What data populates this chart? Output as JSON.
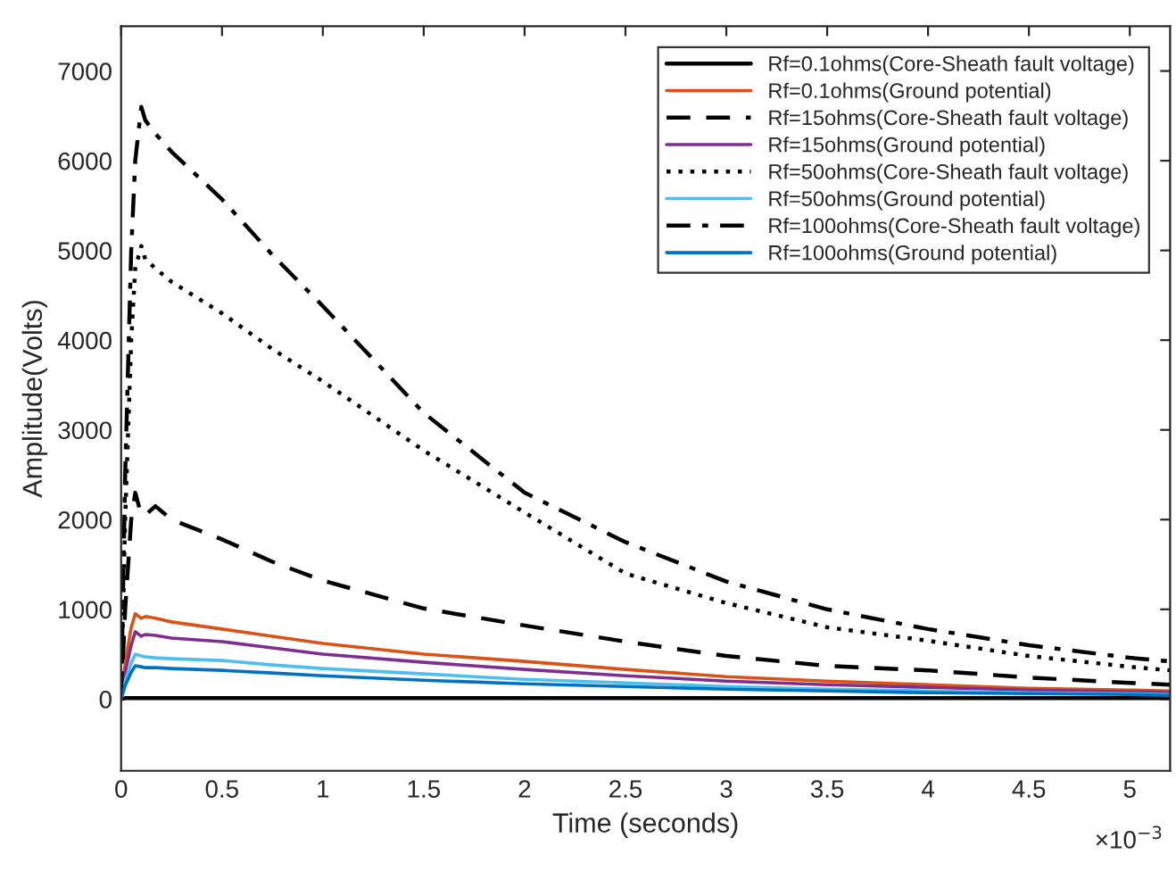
{
  "chart_data": {
    "type": "line",
    "xlabel": "Time (seconds)",
    "ylabel": "Amplitude(Volts)",
    "annotations": [
      "×10$^{−3}$"
    ],
    "x": [
      0,
      0.02,
      0.05,
      0.07,
      0.1,
      0.12,
      0.17,
      0.25,
      0.5,
      0.75,
      1,
      1.5,
      2,
      2.5,
      3,
      3.5,
      4,
      4.5,
      5,
      5.2
    ],
    "series": [
      {
        "name": "Rf=0.1ohms(Core-Sheath fault voltage)",
        "color": "#000000",
        "line_style": "solid",
        "values": [
          0,
          10,
          10,
          10,
          10,
          10,
          10,
          10,
          10,
          10,
          10,
          10,
          10,
          10,
          10,
          10,
          10,
          10,
          10,
          10
        ]
      },
      {
        "name": "Rf=0.1ohms(Ground potential)",
        "color": "#d95319",
        "line_style": "solid",
        "values": [
          0,
          400,
          800,
          950,
          900,
          920,
          900,
          860,
          780,
          700,
          620,
          500,
          420,
          330,
          250,
          200,
          160,
          120,
          100,
          90
        ]
      },
      {
        "name": "Rf=15ohms(Core-Sheath fault voltage)",
        "color": "#000000",
        "line_style": "dashed",
        "values": [
          0,
          1000,
          2000,
          2300,
          2050,
          2050,
          2150,
          2000,
          1780,
          1530,
          1320,
          1010,
          820,
          640,
          480,
          370,
          320,
          240,
          180,
          160
        ]
      },
      {
        "name": "Rf=15ohms(Ground potential)",
        "color": "#7e2f8e",
        "line_style": "solid",
        "values": [
          0,
          300,
          600,
          750,
          700,
          720,
          710,
          680,
          640,
          570,
          500,
          410,
          330,
          260,
          200,
          160,
          130,
          100,
          80,
          70
        ]
      },
      {
        "name": "Rf=50ohms(Core-Sheath fault voltage)",
        "color": "#000000",
        "line_style": "dotted",
        "values": [
          0,
          2000,
          4000,
          4800,
          5050,
          4900,
          4800,
          4650,
          4300,
          3900,
          3540,
          2770,
          2080,
          1400,
          1070,
          800,
          650,
          480,
          360,
          320
        ]
      },
      {
        "name": "Rf=50ohms(Ground potential)",
        "color": "#4dbeee",
        "line_style": "solid",
        "values": [
          0,
          200,
          400,
          500,
          480,
          470,
          460,
          450,
          430,
          380,
          340,
          280,
          220,
          180,
          140,
          110,
          90,
          70,
          60,
          50
        ]
      },
      {
        "name": "Rf=100ohms(Core-Sheath fault voltage)",
        "color": "#000000",
        "line_style": "dashdot",
        "values": [
          0,
          2500,
          5000,
          6000,
          6600,
          6450,
          6300,
          6100,
          5570,
          4950,
          4380,
          3190,
          2300,
          1750,
          1310,
          1000,
          780,
          600,
          460,
          420
        ]
      },
      {
        "name": "Rf=100ohms(Ground potential)",
        "color": "#0072bd",
        "line_style": "solid",
        "values": [
          0,
          150,
          300,
          370,
          360,
          350,
          350,
          340,
          320,
          290,
          260,
          210,
          170,
          140,
          110,
          90,
          70,
          60,
          50,
          40
        ]
      }
    ],
    "xlim": [
      0,
      5.2
    ],
    "xticks": [
      0,
      0.5,
      1,
      1.5,
      2,
      2.5,
      3,
      3.5,
      4,
      4.5,
      5
    ],
    "ylim": [
      -800,
      7500
    ],
    "yticks": [
      0,
      1000,
      2000,
      3000,
      4000,
      5000,
      6000,
      7000
    ],
    "legend": "top right",
    "grid": false
  }
}
